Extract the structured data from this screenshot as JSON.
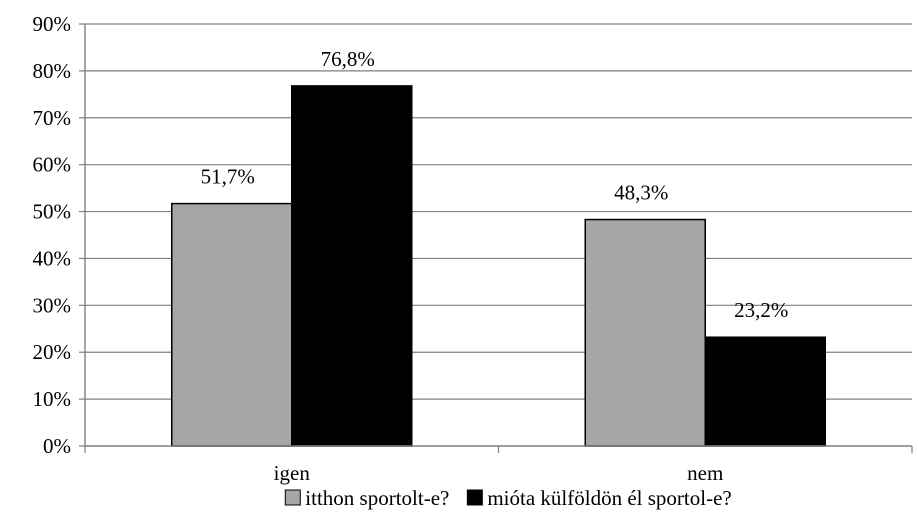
{
  "chart_data": {
    "type": "bar",
    "categories": [
      "igen",
      "nem"
    ],
    "series": [
      {
        "name": "itthon sportolt-e?",
        "values": [
          51.7,
          48.3
        ],
        "value_labels": [
          "51,7%",
          "48,3%"
        ],
        "color": "#a6a6a6"
      },
      {
        "name": "mióta külföldön él sportol-e?",
        "values": [
          76.8,
          23.2
        ],
        "value_labels": [
          "76,8%",
          "23,2%"
        ],
        "color": "#000000"
      }
    ],
    "y_ticks": [
      0,
      10,
      20,
      30,
      40,
      50,
      60,
      70,
      80,
      90
    ],
    "y_tick_labels": [
      "0%",
      "10%",
      "20%",
      "30%",
      "40%",
      "50%",
      "60%",
      "70%",
      "80%",
      "90%"
    ],
    "ylim": [
      0,
      90
    ],
    "grid": true,
    "legend_position": "bottom",
    "title": "",
    "xlabel": "",
    "ylabel": ""
  }
}
